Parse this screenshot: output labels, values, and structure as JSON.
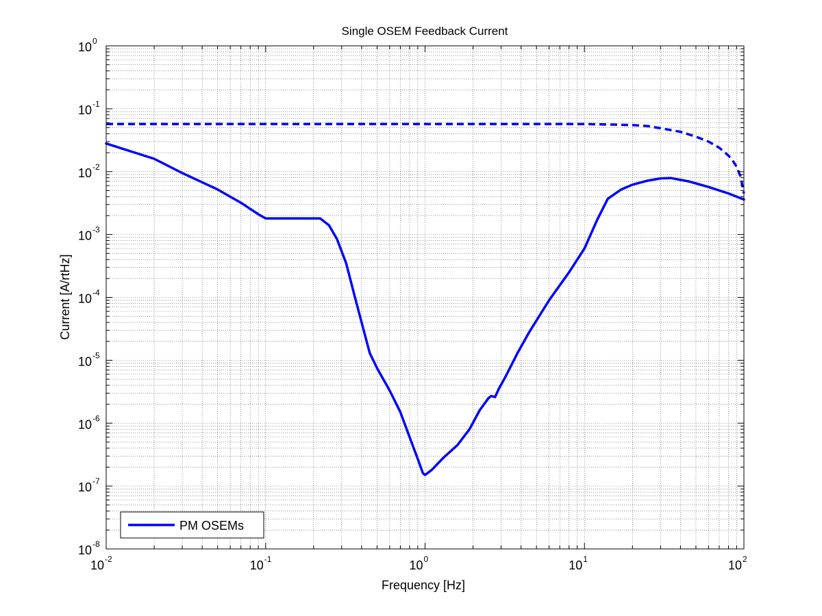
{
  "chart_data": {
    "type": "line",
    "title": "Single OSEM Feedback Current",
    "xlabel": "Frequency [Hz]",
    "ylabel": "Current [A/rtHz]",
    "xscale": "log",
    "yscale": "log",
    "xlim": [
      0.01,
      100
    ],
    "ylim": [
      1e-08,
      1
    ],
    "grid": true,
    "minor_grid": true,
    "legend": {
      "placement": "bottom-left",
      "entries": [
        "PM OSEMs"
      ]
    },
    "x_ticks": [
      {
        "base": "10",
        "exp": "-2",
        "value": 0.01
      },
      {
        "base": "10",
        "exp": "-1",
        "value": 0.1
      },
      {
        "base": "10",
        "exp": "0",
        "value": 1
      },
      {
        "base": "10",
        "exp": "1",
        "value": 10
      },
      {
        "base": "10",
        "exp": "2",
        "value": 100
      }
    ],
    "y_ticks": [
      {
        "base": "10",
        "exp": "0",
        "value": 1
      },
      {
        "base": "10",
        "exp": "-1",
        "value": 0.1
      },
      {
        "base": "10",
        "exp": "-2",
        "value": 0.01
      },
      {
        "base": "10",
        "exp": "-3",
        "value": 0.001
      },
      {
        "base": "10",
        "exp": "-4",
        "value": 0.0001
      },
      {
        "base": "10",
        "exp": "-5",
        "value": 1e-05
      },
      {
        "base": "10",
        "exp": "-6",
        "value": 1e-06
      },
      {
        "base": "10",
        "exp": "-7",
        "value": 1e-07
      },
      {
        "base": "10",
        "exp": "-8",
        "value": 1e-08
      }
    ],
    "series": [
      {
        "name": "PM OSEMs",
        "color": "#0000ff",
        "style": "solid",
        "x": [
          0.01,
          0.02,
          0.03,
          0.05,
          0.07,
          0.09,
          0.1,
          0.15,
          0.2,
          0.22,
          0.25,
          0.28,
          0.32,
          0.36,
          0.4,
          0.45,
          0.5,
          0.6,
          0.7,
          0.8,
          0.9,
          0.97,
          1.0,
          1.1,
          1.3,
          1.6,
          1.9,
          2.2,
          2.5,
          2.6,
          2.75,
          2.9,
          3.2,
          3.8,
          4.5,
          6.0,
          8.0,
          10.0,
          12.0,
          14.0,
          17.0,
          20.0,
          25.0,
          30.0,
          35.0,
          45.0,
          60.0,
          80.0,
          100.0
        ],
        "y": [
          0.028,
          0.016,
          0.0095,
          0.0052,
          0.0032,
          0.0021,
          0.0018,
          0.0018,
          0.0018,
          0.0018,
          0.0014,
          0.00085,
          0.00035,
          0.00011,
          4e-05,
          1.3e-05,
          7.5e-06,
          3.3e-06,
          1.5e-06,
          6e-07,
          2.7e-07,
          1.6e-07,
          1.5e-07,
          1.8e-07,
          2.8e-07,
          4.5e-07,
          8e-07,
          1.6e-06,
          2.5e-06,
          2.7e-06,
          2.6e-06,
          3.5e-06,
          5.5e-06,
          1.3e-05,
          2.8e-05,
          9e-05,
          0.00025,
          0.0006,
          0.0017,
          0.0037,
          0.0052,
          0.0062,
          0.0072,
          0.0078,
          0.0079,
          0.007,
          0.0057,
          0.0045,
          0.0036
        ]
      },
      {
        "name": "",
        "color": "#0000ff",
        "style": "dashed",
        "x": [
          0.01,
          0.1,
          1,
          5,
          10,
          15,
          20,
          25,
          30,
          40,
          50,
          60,
          70,
          80,
          85,
          90,
          95,
          100
        ],
        "y": [
          0.057,
          0.057,
          0.057,
          0.057,
          0.057,
          0.056,
          0.055,
          0.053,
          0.049,
          0.043,
          0.036,
          0.03,
          0.024,
          0.018,
          0.015,
          0.012,
          0.0085,
          0.0045
        ]
      }
    ]
  }
}
